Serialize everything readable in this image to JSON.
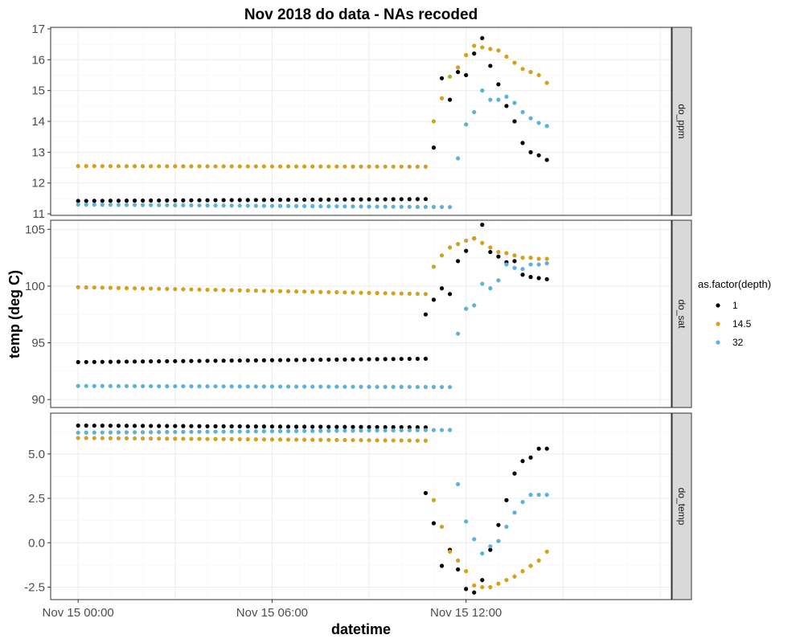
{
  "chart_data": {
    "type": "scatter",
    "title": "Nov 2018 do data - NAs recoded",
    "xlabel": "datetime",
    "ylabel": "temp (deg C)",
    "x_unit": "hours since Nov 15 00:00",
    "x_ticks": [
      {
        "value": 0,
        "label": "Nov 15 00:00"
      },
      {
        "value": 6,
        "label": "Nov 15 06:00"
      },
      {
        "value": 12,
        "label": "Nov 15 12:00"
      }
    ],
    "xlim": [
      -0.85,
      18.35
    ],
    "grid": true,
    "facet_by": "variable",
    "legend": {
      "title": "as.factor(depth)",
      "position": "right",
      "entries": [
        {
          "label": "1",
          "color": "#000000"
        },
        {
          "label": "14.5",
          "color": "#d4a11a"
        },
        {
          "label": "32",
          "color": "#5ab3d9"
        }
      ]
    },
    "panels": [
      {
        "strip": "do_ppm",
        "ylim": [
          10.95,
          17.05
        ],
        "y_ticks": [
          {
            "value": 11,
            "label": "11"
          },
          {
            "value": 12,
            "label": "12"
          },
          {
            "value": 13,
            "label": "13"
          },
          {
            "value": 14,
            "label": "14"
          },
          {
            "value": 15,
            "label": "15"
          },
          {
            "value": 16,
            "label": "16"
          },
          {
            "value": 17,
            "label": "17"
          }
        ],
        "series": [
          {
            "name": "1",
            "x": [
              11,
              11.25,
              11.5,
              11.75,
              12,
              12.25,
              12.5,
              12.75,
              13,
              13.25,
              13.5,
              13.75,
              14,
              14.25,
              14.5
            ],
            "y": [
              13.15,
              15.4,
              14.7,
              15.6,
              15.5,
              16.2,
              16.7,
              15.8,
              15.2,
              14.5,
              14,
              13.3,
              13,
              12.9,
              12.75
            ]
          },
          {
            "name": "14.5",
            "x": [
              11,
              11.25,
              11.5,
              11.75,
              12,
              12.25,
              12.5,
              12.75,
              13,
              13.25,
              13.5,
              13.75,
              14,
              14.25,
              14.5
            ],
            "y": [
              14,
              14.75,
              15.45,
              15.75,
              16.15,
              16.45,
              16.4,
              16.35,
              16.3,
              16.1,
              15.9,
              15.7,
              15.6,
              15.5,
              15.25
            ]
          },
          {
            "name": "32",
            "x": [
              11.75,
              12,
              12.25,
              12.5,
              12.75,
              13,
              13.25,
              13.5,
              13.75,
              14,
              14.25,
              14.5
            ],
            "y": [
              12.8,
              13.9,
              14.3,
              15,
              14.7,
              14.7,
              14.8,
              14.6,
              14.3,
              14.1,
              13.95,
              13.85
            ]
          }
        ],
        "constant_runs": [
          {
            "series": "1",
            "x_start": 0,
            "x_end": 10.75,
            "y_start": 11.42,
            "y_end": 11.48
          },
          {
            "series": "14.5",
            "x_start": 0,
            "x_end": 10.75,
            "y_start": 12.55,
            "y_end": 12.53
          },
          {
            "series": "32",
            "x_start": 0,
            "x_end": 11.5,
            "y_start": 11.3,
            "y_end": 11.22
          }
        ]
      },
      {
        "strip": "do_sat",
        "ylim": [
          89.3,
          105.8
        ],
        "y_ticks": [
          {
            "value": 90,
            "label": "90"
          },
          {
            "value": 95,
            "label": "95"
          },
          {
            "value": 100,
            "label": "100"
          },
          {
            "value": 105,
            "label": "105"
          }
        ],
        "series": [
          {
            "name": "1",
            "x": [
              10.75,
              11,
              11.25,
              11.5,
              11.75,
              12,
              12.25,
              12.5,
              12.75,
              13,
              13.25,
              13.5,
              13.75,
              14,
              14.25,
              14.5
            ],
            "y": [
              97.5,
              98.8,
              99.8,
              99.3,
              102.2,
              103.1,
              104.2,
              105.4,
              103,
              102.6,
              102.1,
              102.2,
              101,
              100.8,
              100.7,
              100.6
            ]
          },
          {
            "name": "14.5",
            "x": [
              11,
              11.25,
              11.5,
              11.75,
              12,
              12.25,
              12.5,
              12.75,
              13,
              13.25,
              13.5,
              13.75,
              14,
              14.25,
              14.5
            ],
            "y": [
              101.7,
              102.7,
              103.4,
              103.7,
              104,
              104.2,
              103.8,
              103.4,
              103,
              102.9,
              102.7,
              102.5,
              102.5,
              102.4,
              102.4
            ]
          },
          {
            "name": "32",
            "x": [
              11.75,
              12,
              12.25,
              12.5,
              12.75,
              13,
              13.25,
              13.5,
              13.75,
              14,
              14.25,
              14.5
            ],
            "y": [
              95.8,
              98,
              98.3,
              100.2,
              99.8,
              100.5,
              101.9,
              101.6,
              101.5,
              101.9,
              101.9,
              102
            ]
          }
        ],
        "constant_runs": [
          {
            "series": "1",
            "x_start": 0,
            "x_end": 10.75,
            "y_start": 93.3,
            "y_end": 93.6
          },
          {
            "series": "14.5",
            "x_start": 0,
            "x_end": 10.75,
            "y_start": 99.9,
            "y_end": 99.3
          },
          {
            "series": "32",
            "x_start": 0,
            "x_end": 11.5,
            "y_start": 91.2,
            "y_end": 91.1
          }
        ]
      },
      {
        "strip": "do_temp",
        "ylim": [
          -3.2,
          7.3
        ],
        "y_ticks": [
          {
            "value": -2.5,
            "label": "-2.5"
          },
          {
            "value": 0,
            "label": "0.0"
          },
          {
            "value": 2.5,
            "label": "2.5"
          },
          {
            "value": 5,
            "label": "5.0"
          }
        ],
        "series": [
          {
            "name": "1",
            "x": [
              10.75,
              11,
              11.25,
              11.5,
              11.75,
              12,
              12.25,
              12.5,
              12.75,
              13,
              13.25,
              13.5,
              13.75,
              14,
              14.25,
              14.5
            ],
            "y": [
              2.8,
              1.1,
              -1.3,
              -0.4,
              -1.5,
              -2.6,
              -2.8,
              -2.1,
              -0.4,
              1,
              2.4,
              3.9,
              4.6,
              4.8,
              5.3,
              5.3
            ]
          },
          {
            "name": "14.5",
            "x": [
              11,
              11.25,
              11.5,
              11.75,
              12,
              12.25,
              12.5,
              12.75,
              13,
              13.25,
              13.5,
              13.75,
              14,
              14.25,
              14.5
            ],
            "y": [
              2.4,
              0.9,
              -0.5,
              -1,
              -1.6,
              -2.4,
              -2.5,
              -2.5,
              -2.3,
              -2.1,
              -1.9,
              -1.6,
              -1.3,
              -1,
              -0.5
            ]
          },
          {
            "name": "32",
            "x": [
              11.75,
              12,
              12.25,
              12.5,
              12.75,
              13,
              13.25,
              13.5,
              13.75,
              14,
              14.25,
              14.5
            ],
            "y": [
              3.3,
              1.2,
              0.2,
              -0.6,
              -0.2,
              0.1,
              0.9,
              1.7,
              2.3,
              2.7,
              2.7,
              2.7
            ]
          }
        ],
        "constant_runs": [
          {
            "series": "1",
            "x_start": 0,
            "x_end": 10.75,
            "y_start": 6.6,
            "y_end": 6.5
          },
          {
            "series": "14.5",
            "x_start": 0,
            "x_end": 10.75,
            "y_start": 5.9,
            "y_end": 5.75
          },
          {
            "series": "32",
            "x_start": 0,
            "x_end": 11.5,
            "y_start": 6.2,
            "y_end": 6.35
          }
        ]
      }
    ]
  }
}
